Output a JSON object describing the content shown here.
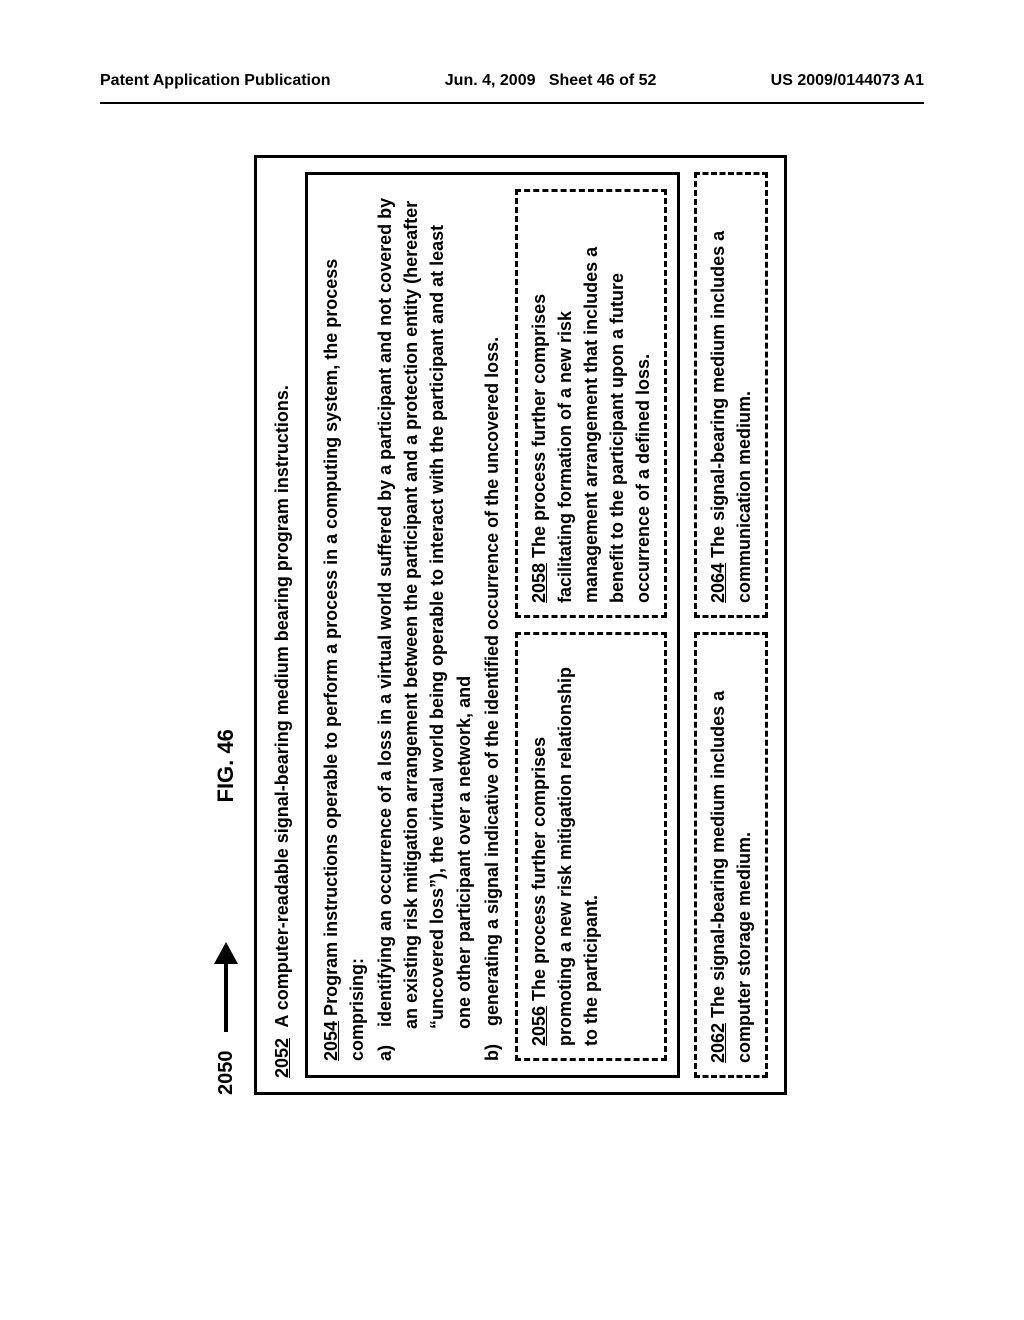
{
  "header": {
    "left": "Patent Application Publication",
    "center_line1": "Jun. 4, 2009",
    "center_line2": "Sheet 46 of 52",
    "right": "US 2009/0144073 A1"
  },
  "figure": {
    "ref": "2050",
    "title": "FIG. 46"
  },
  "box2052": {
    "num": "2052",
    "text": "A computer-readable signal-bearing medium bearing program instructions."
  },
  "box2054": {
    "num": "2054",
    "lead": "Program instructions operable to perform a process in a computing system, the process comprising:",
    "item_a": "a) identifying an occurrence of a loss in a virtual world suffered by a participant and not covered by an existing risk mitigation arrangement between the participant and a protection entity (hereafter “uncovered loss”), the virtual world being operable to interact with the participant and at least one other participant over a network, and",
    "item_b": "b) generating a signal indicative of the identified occurrence of the uncovered loss."
  },
  "box2056": {
    "num": "2056",
    "text": "The process further comprises promoting a new risk mitigation relationship to the participant."
  },
  "box2058": {
    "num": "2058",
    "text": "The process further comprises facilitating formation of a new risk management arrangement that includes a benefit to the participant upon a future occurrence of a defined loss."
  },
  "box2062": {
    "num": "2062",
    "text": "The signal-bearing medium includes a computer storage medium."
  },
  "box2064": {
    "num": "2064",
    "text": "The signal-bearing medium includes a communication medium."
  }
}
